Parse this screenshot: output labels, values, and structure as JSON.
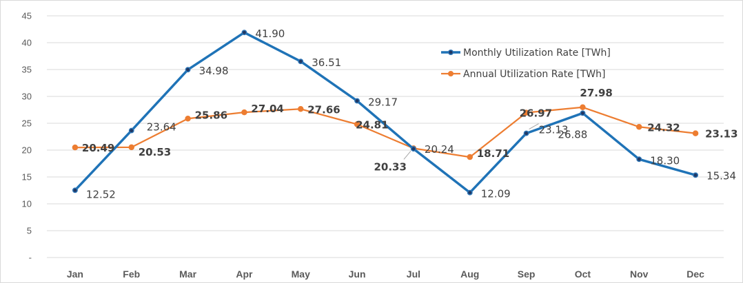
{
  "chart_data": {
    "type": "line",
    "categories": [
      "Jan",
      "Feb",
      "Mar",
      "Apr",
      "May",
      "Jun",
      "Jul",
      "Aug",
      "Sep",
      "Oct",
      "Nov",
      "Dec"
    ],
    "yticks": [
      "-",
      "5",
      "10",
      "15",
      "20",
      "25",
      "30",
      "35",
      "40",
      "45"
    ],
    "ylim": [
      0,
      45
    ],
    "grid": true,
    "legend_position": "top-right",
    "series": [
      {
        "name": "Monthly Utilization Rate [TWh]",
        "color": "#1F73B7",
        "marker_fill": "#1F3864",
        "values": [
          12.52,
          23.64,
          34.98,
          41.9,
          36.51,
          29.17,
          20.24,
          12.09,
          23.13,
          26.88,
          18.3,
          15.34
        ],
        "labels": [
          "12.52",
          "23.64",
          "34.98",
          "41.90",
          "36.51",
          "29.17",
          "20.24",
          "12.09",
          "23.13",
          "26.88",
          "18.30",
          "15.34"
        ]
      },
      {
        "name": "Annual Utilization Rate [TWh]",
        "color": "#ED7D31",
        "marker_fill": "#ED7D31",
        "values": [
          20.49,
          20.53,
          25.86,
          27.04,
          27.66,
          24.81,
          20.33,
          18.71,
          26.97,
          27.98,
          24.32,
          23.13
        ],
        "labels": [
          "20.49",
          "20.53",
          "25.86",
          "27.04",
          "27.66",
          "24.81",
          "20.33",
          "18.71",
          "26.97",
          "27.98",
          "24.32",
          "23.13"
        ]
      }
    ]
  }
}
